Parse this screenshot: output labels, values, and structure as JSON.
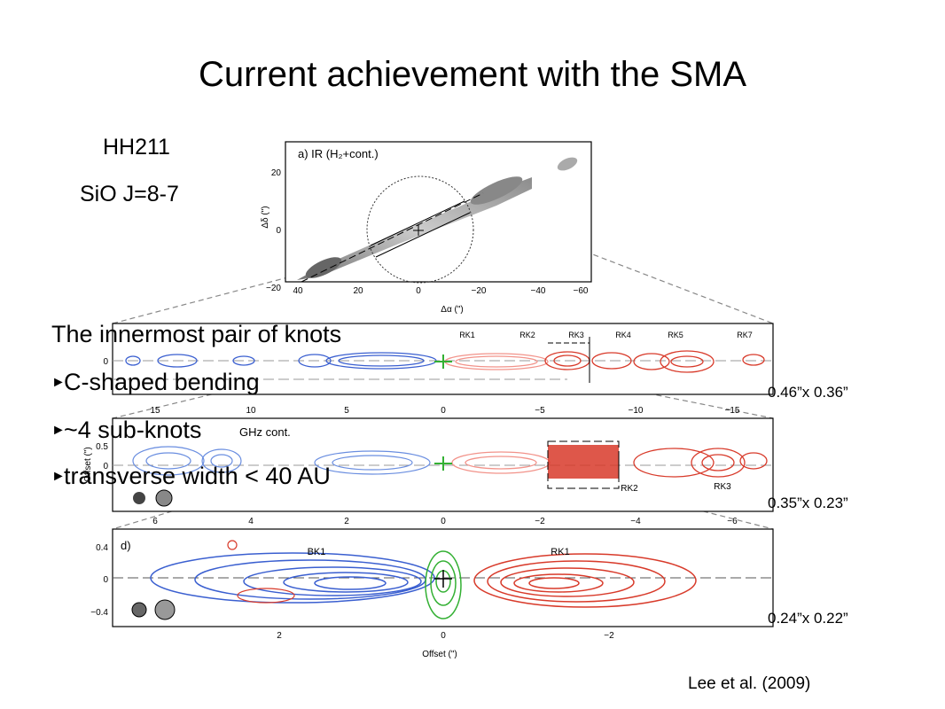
{
  "slide": {
    "title": "Current achievement with the SMA",
    "source_name": "HH211",
    "line": "SiO J=8-7",
    "summary_heading": "The innermost pair of knots",
    "bullets": [
      "C-shaped bending",
      "~4 sub-knots",
      "transverse width < 40 AU"
    ],
    "beams": [
      "0.46”x 0.36”",
      "0.35”x 0.23”",
      "0.24”x 0.22”"
    ],
    "citation": "Lee et al. (2009)"
  },
  "figure": {
    "panel_a": {
      "label": "a) IR (H₂+cont.)",
      "xlabel": "Δα (\")",
      "ylabel": "Δδ (\")",
      "xticks": [
        "40",
        "20",
        "0",
        "−20",
        "−40",
        "−60"
      ],
      "yticks": [
        "20",
        "0",
        "−20"
      ]
    },
    "panel_b": {
      "xticks": [
        "15",
        "10",
        "5",
        "0",
        "−5",
        "−10",
        "−15"
      ],
      "ytick": "0",
      "knots": [
        "RK1",
        "RK2",
        "RK3",
        "RK4",
        "RK5",
        "RK7"
      ]
    },
    "panel_c": {
      "label": "GHz cont.",
      "ylabel": "Offset (\")",
      "xticks": [
        "6",
        "4",
        "2",
        "0",
        "−2",
        "−4",
        "−6"
      ],
      "yticks": [
        "0.5",
        "0"
      ],
      "knots": [
        "RK2",
        "RK3"
      ]
    },
    "panel_d": {
      "label": "d)",
      "xlabel": "Offset (\")",
      "xticks": [
        "2",
        "0",
        "−2"
      ],
      "yticks": [
        "0.4",
        "0",
        "−0.4"
      ],
      "knots": [
        "BK1",
        "RK1"
      ]
    }
  },
  "colors": {
    "blue_lobe": "#3a5fd0",
    "red_lobe": "#d83a2a",
    "green_source": "#33b033",
    "dashed": "#888888"
  }
}
